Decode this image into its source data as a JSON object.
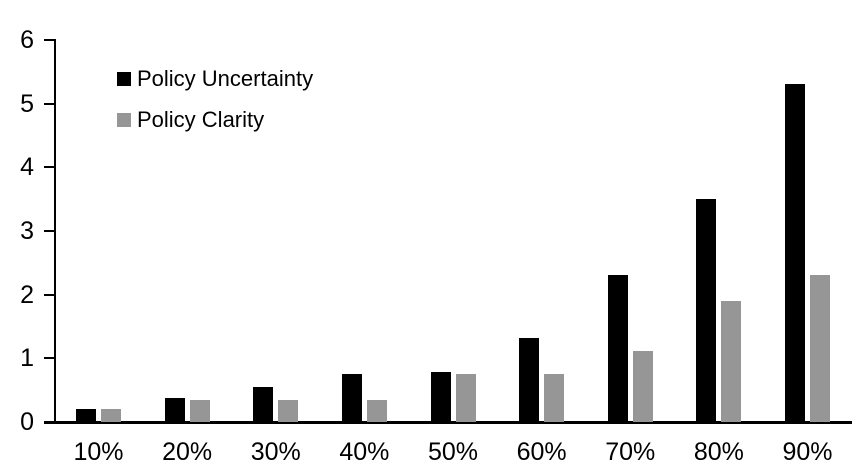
{
  "chart_data": {
    "type": "bar",
    "title": "",
    "xlabel": "",
    "ylabel": "",
    "categories": [
      "10%",
      "20%",
      "30%",
      "40%",
      "50%",
      "60%",
      "70%",
      "80%",
      "90%"
    ],
    "series": [
      {
        "name": "Policy Uncertainty",
        "color": "#000000",
        "values": [
          0.2,
          0.38,
          0.55,
          0.76,
          0.78,
          1.32,
          2.3,
          3.5,
          5.3
        ]
      },
      {
        "name": "Policy Clarity",
        "color": "#969696",
        "values": [
          0.2,
          0.35,
          0.35,
          0.35,
          0.75,
          0.75,
          1.12,
          1.9,
          2.3
        ]
      }
    ],
    "ylim": [
      0,
      6
    ],
    "yticks": [
      0,
      1,
      2,
      3,
      4,
      5,
      6
    ],
    "grid": false,
    "legend_position": "top-left",
    "axis_color": "#000000",
    "background_color": "#ffffff"
  }
}
